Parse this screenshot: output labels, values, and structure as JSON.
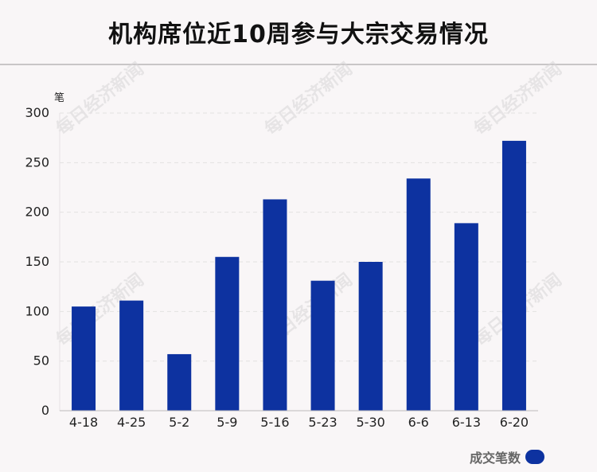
{
  "title": "机构席位近10周参与大宗交易情况",
  "watermark": "每日经济新闻",
  "chart_data": {
    "type": "bar",
    "unit_label": "笔",
    "categories": [
      "4-18",
      "4-25",
      "5-2",
      "5-9",
      "5-16",
      "5-23",
      "5-30",
      "6-6",
      "6-13",
      "6-20"
    ],
    "series": [
      {
        "name": "成交笔数",
        "values": [
          105,
          111,
          57,
          155,
          213,
          131,
          150,
          234,
          189,
          272
        ],
        "color": "#0d32a0"
      }
    ],
    "ylim": [
      0,
      300
    ],
    "yticks": [
      0,
      50,
      100,
      150,
      200,
      250,
      300
    ],
    "grid": true,
    "legend_position": "bottom-right"
  }
}
